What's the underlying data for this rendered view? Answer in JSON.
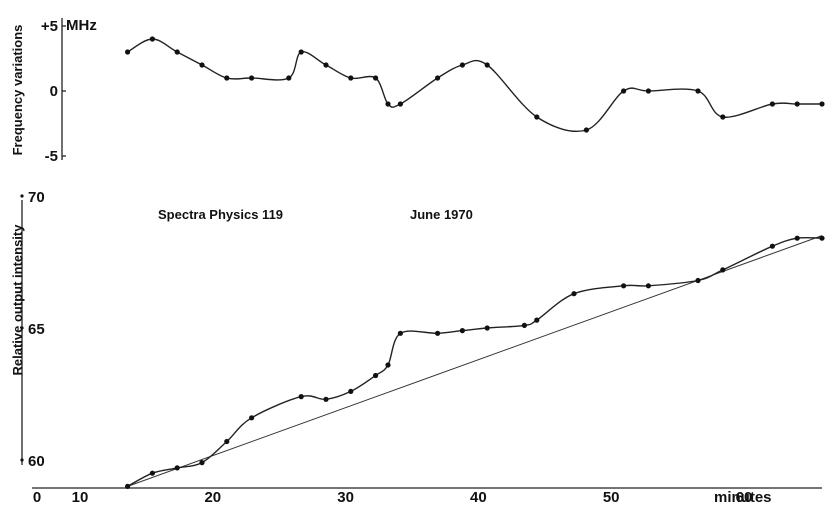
{
  "chart_data": [
    {
      "type": "scatter",
      "title": "",
      "xlabel": "",
      "ylabel": "Frequency variations",
      "unit": "MHz",
      "xlim": [
        0,
        60
      ],
      "ylim": [
        -5,
        5
      ],
      "ytick_labels": [
        "+5",
        "0",
        "-5"
      ],
      "grid": false,
      "series": [
        {
          "x": [
            4,
            6,
            8,
            10,
            12,
            14,
            17,
            18,
            20,
            22,
            24,
            25,
            26,
            29,
            31,
            33,
            37,
            41,
            44,
            46,
            50,
            52,
            56,
            58,
            60
          ],
          "y": [
            3,
            4,
            3,
            2,
            1,
            1,
            1,
            3,
            2,
            1,
            1,
            -1,
            -1,
            1,
            2,
            2,
            -2,
            -3,
            0,
            0,
            0,
            -2,
            -1,
            -1,
            -1
          ]
        }
      ]
    },
    {
      "type": "scatter",
      "title": "",
      "xlabel": "minutes",
      "ylabel": "Relative output intensity",
      "xlim": [
        0,
        60
      ],
      "ylim": [
        60,
        70
      ],
      "xticks": [
        0,
        10,
        20,
        30,
        40,
        50,
        60
      ],
      "yticks": [
        60,
        65,
        70
      ],
      "grid": false,
      "annotations": [
        "Spectra  Physics  119",
        "June  1970"
      ],
      "series": [
        {
          "x": [
            4,
            6,
            8,
            10,
            12,
            14,
            18,
            20,
            22,
            24,
            25,
            26,
            29,
            31,
            33,
            36,
            37,
            40,
            44,
            46,
            50,
            52,
            56,
            58,
            60
          ],
          "y": [
            59.0,
            59.5,
            59.7,
            59.9,
            60.7,
            61.6,
            62.4,
            62.3,
            62.6,
            63.2,
            63.6,
            64.8,
            64.8,
            64.9,
            65.0,
            65.1,
            65.3,
            66.3,
            66.6,
            66.6,
            66.8,
            67.2,
            68.1,
            68.4,
            68.4
          ]
        },
        {
          "name": "",
          "kind": "trend-line",
          "x": [
            4,
            60
          ],
          "y": [
            59.0,
            68.5
          ]
        }
      ]
    }
  ]
}
